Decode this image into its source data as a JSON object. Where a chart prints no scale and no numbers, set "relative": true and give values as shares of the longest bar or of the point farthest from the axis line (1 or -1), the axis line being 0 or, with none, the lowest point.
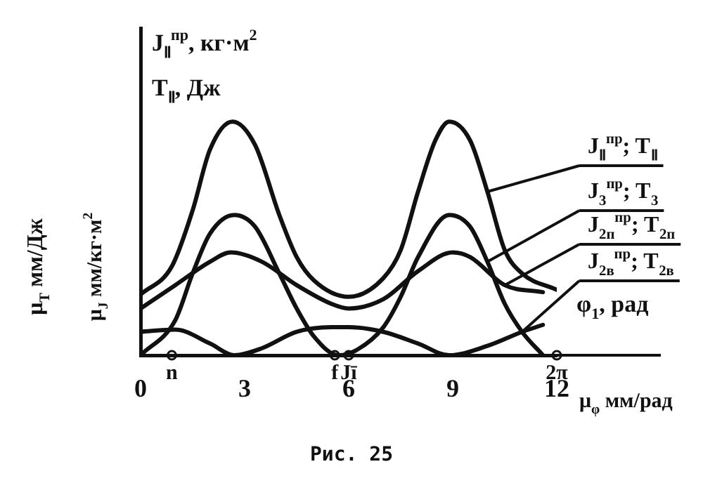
{
  "chart_data": {
    "type": "line",
    "relative": true,
    "ylabel": "J$_{Ⅱ}$$^{пр}$, кг·м$^{2}$",
    "xlabel": "μ$_{φ}$ мм/рад",
    "xlim": [
      0,
      12
    ],
    "xticks": [
      0,
      3,
      6,
      9,
      12
    ],
    "grid": false,
    "legend": "right",
    "marker": "none",
    "line_style": "solid",
    "series": [
      {
        "name": "J$_{Ⅱ}$$^{пр}$; T$_{Ⅱ}$",
        "color": "#111111",
        "x": [
          0,
          0.9,
          1.5,
          2,
          2.65,
          3.3,
          4,
          4.5,
          5,
          6,
          7,
          7.5,
          8,
          8.5,
          8.9,
          9.5,
          10,
          10.5,
          11,
          12
        ],
        "values": [
          0.26,
          0.38,
          0.62,
          0.88,
          1,
          0.9,
          0.6,
          0.42,
          0.32,
          0.25,
          0.33,
          0.45,
          0.7,
          0.92,
          1,
          0.92,
          0.7,
          0.45,
          0.35,
          0.28
        ]
      },
      {
        "name": "J$_{3}$$^{пр}$; T$_{3}$",
        "color": "#111111",
        "x": [
          0,
          1,
          1.5,
          2,
          2.7,
          3.3,
          4,
          4.5,
          5,
          5.7,
          6.2,
          7,
          7.5,
          8,
          8.9,
          9.5,
          10,
          10.5,
          11,
          11.6
        ],
        "values": [
          0,
          0.15,
          0.35,
          0.52,
          0.6,
          0.55,
          0.35,
          0.2,
          0.08,
          0,
          0.02,
          0.12,
          0.25,
          0.42,
          0.6,
          0.55,
          0.4,
          0.22,
          0.1,
          0
        ]
      },
      {
        "name": "J$_{2п}$$^{пр}$; T$_{2п}$",
        "color": "#111111",
        "x": [
          0,
          1,
          2,
          2.6,
          3.5,
          4.5,
          5.5,
          6,
          7,
          8,
          9,
          9.5,
          10.5,
          11.6
        ],
        "values": [
          0.2,
          0.3,
          0.4,
          0.44,
          0.4,
          0.3,
          0.22,
          0.2,
          0.24,
          0.36,
          0.44,
          0.42,
          0.3,
          0.27
        ]
      },
      {
        "name": "J$_{2в}$$^{пр}$; T$_{2в}$",
        "color": "#111111",
        "x": [
          0,
          1,
          2,
          2.7,
          3.5,
          4.5,
          5.5,
          6,
          7,
          8,
          8.9,
          10,
          11,
          11.6
        ],
        "values": [
          0.1,
          0.11,
          0.05,
          0,
          0.03,
          0.1,
          0.12,
          0.12,
          0.1,
          0.05,
          0,
          0.04,
          0.1,
          0.13
        ]
      }
    ],
    "annotations": [
      "T$_{Ⅱ}$, Дж",
      "μ$_{T}$ мм/Дж",
      "μ$_{J}$ мм/кг·м$^{2}$",
      "φ$_{1}$, рад",
      "Рис. 25",
      {
        "text": "n",
        "x": 0.9,
        "y": 0
      },
      {
        "text": "f",
        "x": 5.6,
        "y": 0
      },
      {
        "text": "Jī",
        "x": 6,
        "y": 0
      },
      {
        "text": "2π",
        "x": 12,
        "y": 0
      }
    ]
  }
}
